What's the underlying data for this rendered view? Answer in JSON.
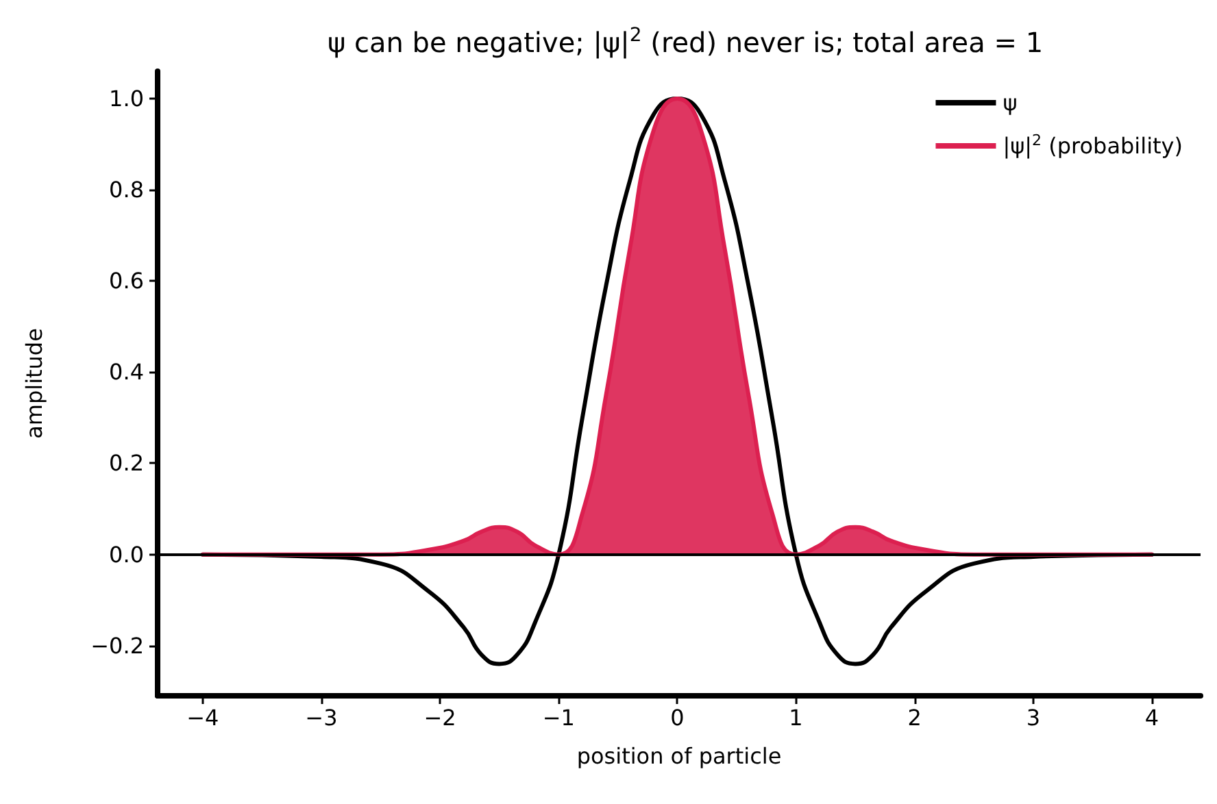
{
  "chart_data": {
    "type": "line",
    "title": "ψ can be negative; |ψ|$^{2}$ (red) never is; total area = 1",
    "xlabel": "position of particle",
    "ylabel": "amplitude",
    "series": [
      {
        "name": "ψ",
        "type": "line",
        "color": "#000000",
        "x": [
          -4,
          -3,
          -2.5,
          -2.1,
          -1.8,
          -1.65,
          -1.5,
          -1.35,
          -1.2,
          -1.0,
          -0.8,
          -0.6,
          -0.4,
          -0.2,
          0,
          0.2,
          0.4,
          0.6,
          0.8,
          1.0,
          1.2,
          1.35,
          1.5,
          1.65,
          1.8,
          2.1,
          2.5,
          3,
          4
        ],
        "values": [
          0,
          -0.005,
          -0.02,
          -0.08,
          -0.16,
          -0.22,
          -0.24,
          -0.22,
          -0.15,
          0,
          0.3,
          0.59,
          0.82,
          0.965,
          1.0,
          0.965,
          0.82,
          0.59,
          0.3,
          0,
          -0.15,
          -0.22,
          -0.24,
          -0.22,
          -0.16,
          -0.08,
          -0.02,
          -0.005,
          0
        ]
      },
      {
        "name": "|ψ|$^{2}$ (probability)",
        "type": "area",
        "color": "#dc2050",
        "x": [
          -4,
          -3,
          -2.5,
          -2.1,
          -1.8,
          -1.65,
          -1.5,
          -1.35,
          -1.2,
          -1.0,
          -0.8,
          -0.6,
          -0.4,
          -0.2,
          0,
          0.2,
          0.4,
          0.6,
          0.8,
          1.0,
          1.2,
          1.35,
          1.5,
          1.65,
          1.8,
          2.1,
          2.5,
          3,
          4
        ],
        "values": [
          0,
          0,
          0,
          0.01,
          0.03,
          0.05,
          0.06,
          0.05,
          0.02,
          0,
          0.09,
          0.35,
          0.67,
          0.93,
          1.0,
          0.93,
          0.67,
          0.35,
          0.09,
          0,
          0.02,
          0.05,
          0.06,
          0.05,
          0.03,
          0.01,
          0,
          0,
          0
        ]
      }
    ],
    "xlim": [
      -4.38,
      4.41
    ],
    "xticks": [
      {
        "value": -4,
        "label": "−4"
      },
      {
        "value": -3,
        "label": "−3"
      },
      {
        "value": -2,
        "label": "−2"
      },
      {
        "value": -1,
        "label": "−1"
      },
      0,
      1,
      2,
      3,
      4
    ],
    "ylim": [
      -0.31,
      1.06
    ],
    "yticks": [
      {
        "value": -0.2,
        "label": "−0.2"
      },
      {
        "value": 0,
        "label": "0.0"
      },
      0.2,
      0.4,
      0.6,
      0.8,
      {
        "value": 1,
        "label": "1.0"
      }
    ],
    "ref_lines": [
      {
        "axis": "y",
        "value": 0,
        "color": "#000000",
        "line_style": "solid"
      }
    ],
    "legend": "top right",
    "marker": "none",
    "line_style": "solid",
    "grid": false
  }
}
